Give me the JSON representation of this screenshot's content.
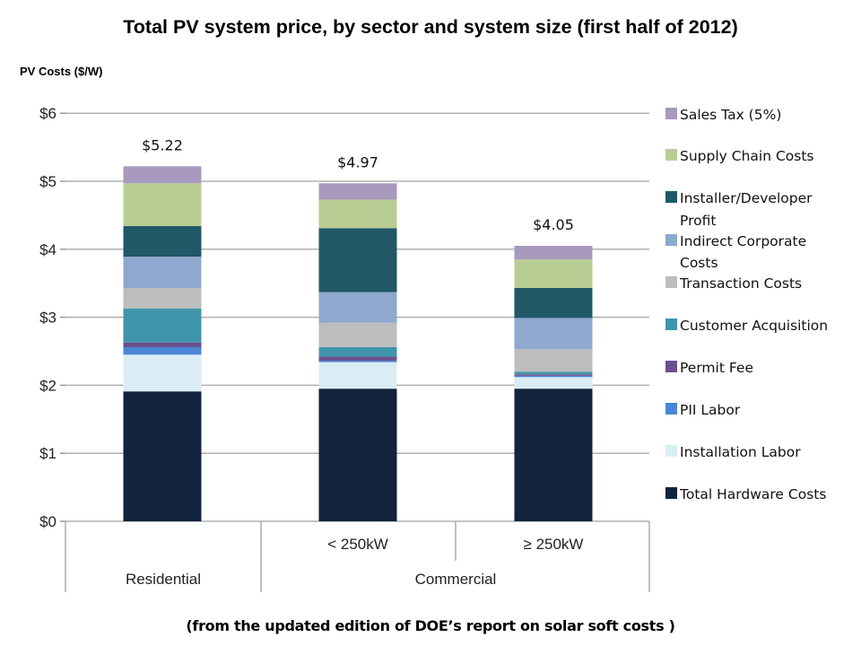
{
  "chart_data": {
    "type": "bar",
    "stacked": true,
    "title": "Total PV system price, by sector and system size (first half of 2012)",
    "ylabel": "PV Costs ($/W)",
    "ylim": [
      0,
      6
    ],
    "yticks": [
      "$0",
      "$1",
      "$2",
      "$3",
      "$4",
      "$5",
      "$6"
    ],
    "grid": true,
    "legend_position": "right",
    "categories": [
      "",
      "< 250kW",
      "≥ 250kW"
    ],
    "category_groups": [
      "Residential",
      "Commercial"
    ],
    "totals": [
      "$5.22",
      "$4.97",
      "$4.05"
    ],
    "series": [
      {
        "name": "Total Hardware Costs",
        "color": "#12233d",
        "values": [
          1.91,
          1.95,
          1.95
        ]
      },
      {
        "name": "Installation Labor",
        "color": "#daedf5",
        "values": [
          0.54,
          0.39,
          0.17
        ]
      },
      {
        "name": "PII Labor",
        "color": "#4a86d6",
        "values": [
          0.11,
          0.02,
          0.02
        ]
      },
      {
        "name": "Permit Fee",
        "color": "#6b4f8e",
        "values": [
          0.07,
          0.06,
          0.02
        ]
      },
      {
        "name": "Customer Acquisition",
        "color": "#4095ab",
        "values": [
          0.5,
          0.14,
          0.04
        ]
      },
      {
        "name": "Transaction Costs",
        "color": "#bdbdbd",
        "values": [
          0.3,
          0.36,
          0.33
        ]
      },
      {
        "name": "Indirect Corporate Costs",
        "color": "#90a8cd",
        "values": [
          0.46,
          0.45,
          0.46
        ]
      },
      {
        "name": "Installer/Developer Profit",
        "color": "#205867",
        "values": [
          0.45,
          0.94,
          0.44
        ]
      },
      {
        "name": "Supply Chain Costs",
        "color": "#b8cd94",
        "values": [
          0.63,
          0.42,
          0.42
        ]
      },
      {
        "name": "Sales Tax (5%)",
        "color": "#a899bd",
        "values": [
          0.25,
          0.24,
          0.2
        ]
      }
    ]
  },
  "caption": "(from the updated edition of DOE’s report on solar soft costs )"
}
